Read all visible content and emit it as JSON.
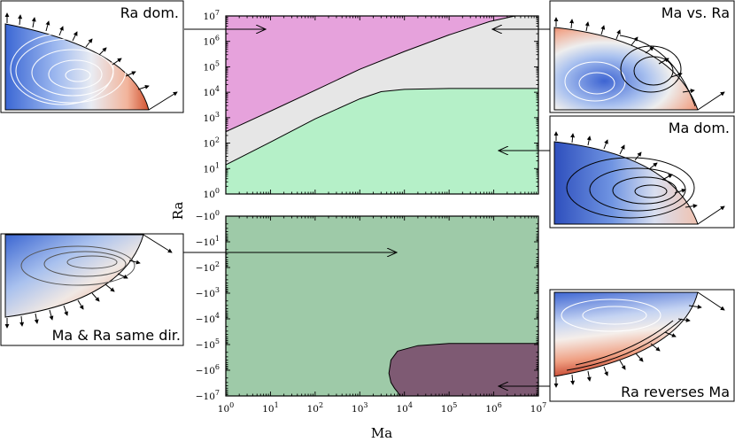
{
  "chart_data": [
    {
      "type": "area",
      "panel": "top",
      "xlabel": "Ma",
      "ylabel": "Ra",
      "xscale": "log",
      "yscale": "log",
      "xlim": [
        1,
        10000000
      ],
      "ylim": [
        1,
        10000000
      ],
      "x_ticks": [
        "10^0",
        "10^1",
        "10^2",
        "10^3",
        "10^4",
        "10^5",
        "10^6",
        "10^7"
      ],
      "y_ticks": [
        "10^0",
        "10^1",
        "10^2",
        "10^3",
        "10^4",
        "10^5",
        "10^6",
        "10^7"
      ],
      "regions": [
        {
          "name": "Ra dom.",
          "color": "#e6a2dc"
        },
        {
          "name": "Ma vs. Ra",
          "color": "#e6e6e6"
        },
        {
          "name": "Ma dom.",
          "color": "#b5f0c8"
        }
      ],
      "boundaries": [
        {
          "between": [
            "Ra dom.",
            "Ma vs. Ra"
          ],
          "x": [
            1,
            10,
            100,
            1000,
            10000,
            100000,
            800000,
            3000000
          ],
          "y": [
            280,
            1800,
            12000,
            80000,
            400000,
            1800000,
            6000000,
            10000000
          ]
        },
        {
          "between": [
            "Ma vs. Ra",
            "Ma dom."
          ],
          "x": [
            1,
            10,
            100,
            1000,
            3000,
            10000,
            100000,
            1000000,
            10000000
          ],
          "y": [
            14,
            110,
            900,
            5500,
            10500,
            13000,
            14000,
            14000,
            14000
          ]
        }
      ],
      "annotations": [
        {
          "label": "Ra dom.",
          "arrow_to": [
            8,
            3000000
          ]
        },
        {
          "label": "Ma vs. Ra",
          "arrow_to": [
            700000,
            3000000
          ]
        },
        {
          "label": "Ma dom.",
          "arrow_to": [
            700000,
            55
          ]
        }
      ]
    },
    {
      "type": "area",
      "panel": "bottom",
      "xlabel": "Ma",
      "ylabel": "Ra",
      "xscale": "log",
      "yscale": "symlog-negative",
      "xlim": [
        1,
        10000000
      ],
      "ylim": [
        -10000000,
        -1
      ],
      "x_ticks": [
        "10^0",
        "10^1",
        "10^2",
        "10^3",
        "10^4",
        "10^5",
        "10^6",
        "10^7"
      ],
      "y_ticks": [
        "-10^0",
        "-10^1",
        "-10^2",
        "-10^3",
        "-10^4",
        "-10^5",
        "-10^6",
        "-10^7"
      ],
      "regions": [
        {
          "name": "Ma & Ra same dir.",
          "color": "#9ecaa8"
        },
        {
          "name": "Ra reverses Ma",
          "color": "#7e5a73"
        }
      ],
      "boundaries": [
        {
          "between": [
            "Ma & Ra same dir.",
            "Ra reverses Ma"
          ],
          "x": [
            10000000,
            100000,
            20000,
            7000,
            5000,
            4500,
            5000,
            6000,
            7000,
            8000
          ],
          "y": [
            -90000,
            -90000,
            -110000,
            -180000,
            -400000,
            -1300000,
            -3000000,
            -5000000,
            -7000000,
            -10000000
          ]
        }
      ],
      "annotations": [
        {
          "label": "Ma & Ra same dir.",
          "arrow_to": [
            20000,
            -20
          ]
        },
        {
          "label": "Ra reverses Ma",
          "arrow_to": [
            700000,
            -7000000
          ]
        }
      ]
    }
  ],
  "insets": {
    "ra_dom": {
      "label": "Ra dom."
    },
    "ma_vs_ra": {
      "label": "Ma vs. Ra"
    },
    "ma_dom": {
      "label": "Ma dom."
    },
    "same_dir": {
      "label": "Ma & Ra same dir."
    },
    "reverses": {
      "label": "Ra reverses Ma"
    }
  },
  "colors": {
    "cold": "#3a5fcd",
    "hot": "#c0482b",
    "neutral": "#f2f2f2"
  }
}
